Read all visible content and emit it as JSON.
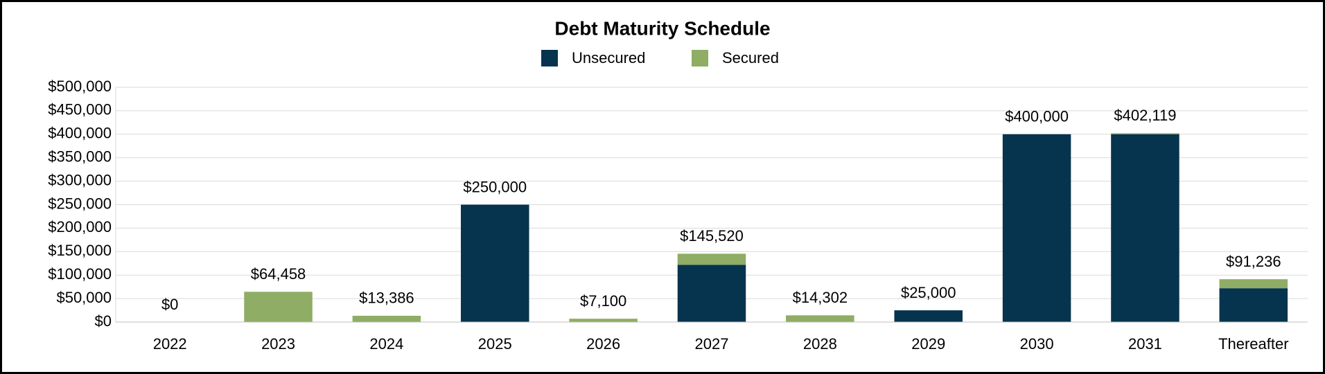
{
  "chart_data": {
    "type": "stacked-bar",
    "title": "Debt Maturity Schedule",
    "categories": [
      "2022",
      "2023",
      "2024",
      "2025",
      "2026",
      "2027",
      "2028",
      "2029",
      "2030",
      "2031",
      "Thereafter"
    ],
    "series": [
      {
        "name": "Unsecured",
        "color": "#06344f",
        "values": [
          0,
          0,
          0,
          250000,
          0,
          122000,
          0,
          25000,
          400000,
          400000,
          72000
        ]
      },
      {
        "name": "Secured",
        "color": "#8fad64",
        "values": [
          0,
          64458,
          13386,
          0,
          7100,
          23520,
          14302,
          0,
          0,
          2119,
          19236
        ]
      }
    ],
    "totals": [
      0,
      64458,
      13386,
      250000,
      7100,
      145520,
      14302,
      25000,
      400000,
      402119,
      91236
    ],
    "total_labels": [
      "$0",
      "$64,458",
      "$13,386",
      "$250,000",
      "$7,100",
      "$145,520",
      "$14,302",
      "$25,000",
      "$400,000",
      "$402,119",
      "$91,236"
    ],
    "ylim": [
      0,
      500000
    ],
    "yticks": [
      {
        "value": 0,
        "label": "$0"
      },
      {
        "value": 50000,
        "label": "$50,000"
      },
      {
        "value": 100000,
        "label": "$100,000"
      },
      {
        "value": 150000,
        "label": "$150,000"
      },
      {
        "value": 200000,
        "label": "$200,000"
      },
      {
        "value": 250000,
        "label": "$250,000"
      },
      {
        "value": 300000,
        "label": "$300,000"
      },
      {
        "value": 350000,
        "label": "$350,000"
      },
      {
        "value": 400000,
        "label": "$400,000"
      },
      {
        "value": 450000,
        "label": "$450,000"
      },
      {
        "value": 500000,
        "label": "$500,000"
      }
    ],
    "grid": true,
    "legend": "top"
  }
}
